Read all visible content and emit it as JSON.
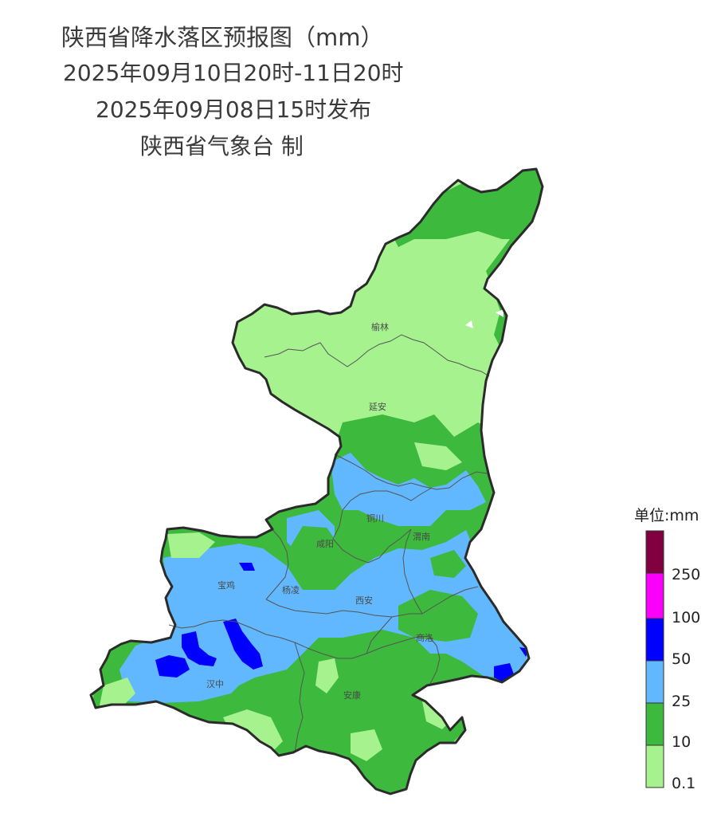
{
  "header": {
    "title": "陕西省降水落区预报图（mm）",
    "period": "2025年09月10日20时-11日20时",
    "issued": "2025年09月08日15时发布",
    "producer": "陕西省气象台 制"
  },
  "cities": {
    "yulin": "榆林",
    "yanan": "延安",
    "tongchuan": "铜川",
    "xianyang": "咸阳",
    "weinan": "渭南",
    "baoji": "宝鸡",
    "yangling": "杨凌",
    "xian": "西安",
    "shangluo": "商洛",
    "hanzhong": "汉中",
    "ankang": "安康"
  },
  "legend": {
    "title": "单位:mm",
    "levels": [
      {
        "label": "0.1",
        "color": "#a6f28f"
      },
      {
        "label": "10",
        "color": "#3db93d"
      },
      {
        "label": "25",
        "color": "#61b8ff"
      },
      {
        "label": "50",
        "color": "#0000fe"
      },
      {
        "label": "100",
        "color": "#fa00fa"
      },
      {
        "label": "250",
        "color": "#800040"
      }
    ]
  }
}
